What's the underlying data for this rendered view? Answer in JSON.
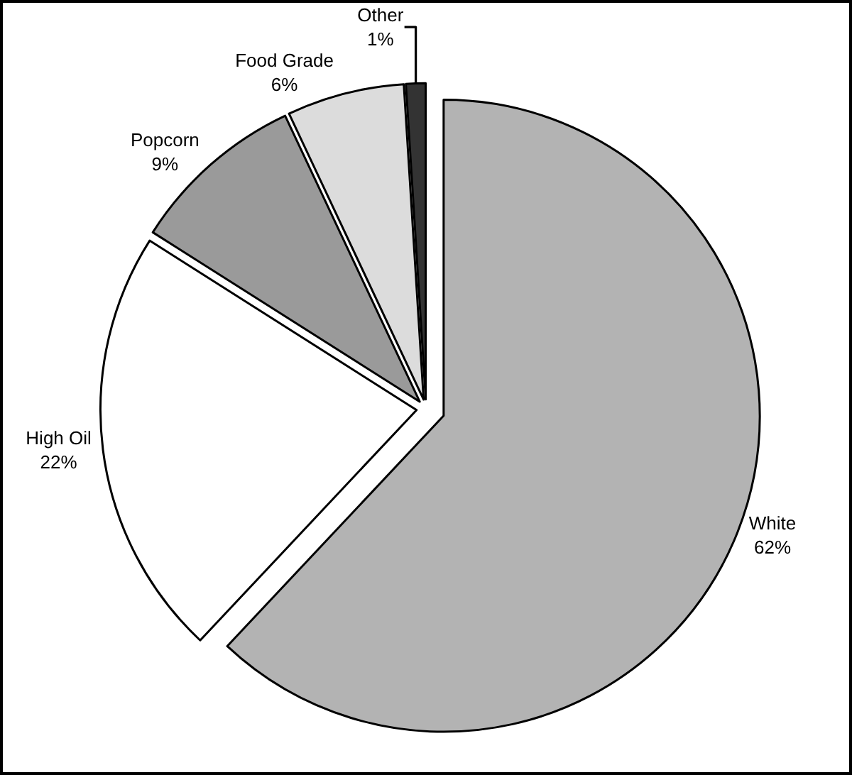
{
  "chart_data": {
    "type": "pie",
    "categories": [
      "White",
      "High Oil",
      "Popcorn",
      "Food Grade",
      "Other"
    ],
    "values": [
      62,
      22,
      9,
      6,
      1
    ],
    "value_labels": [
      "62%",
      "22%",
      "9%",
      "6%",
      "1%"
    ],
    "colors": [
      "#b3b3b3",
      "#ffffff",
      "#9a9a9a",
      "#dcdcdc",
      "#333333"
    ],
    "legend": false
  }
}
